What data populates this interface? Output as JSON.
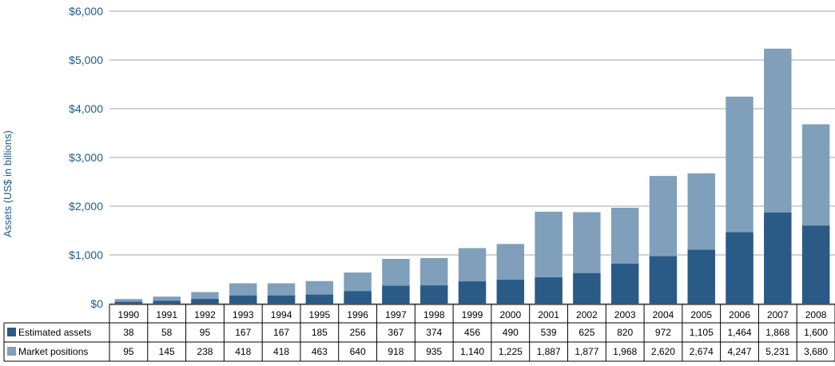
{
  "chart_data": {
    "type": "bar",
    "stacked": false,
    "overlap": true,
    "ylabel": "Assets (US$ in billions)",
    "ylim": [
      0,
      6000
    ],
    "yticks": [
      0,
      1000,
      2000,
      3000,
      4000,
      5000,
      6000
    ],
    "ytick_labels": [
      "$0",
      "$1,000",
      "$2,000",
      "$3,000",
      "$4,000",
      "$5,000",
      "$6,000"
    ],
    "grid": true,
    "legend": "table-bottom",
    "categories": [
      "1990",
      "1991",
      "1992",
      "1993",
      "1994",
      "1995",
      "1996",
      "1997",
      "1998",
      "1999",
      "2000",
      "2001",
      "2002",
      "2003",
      "2004",
      "2005",
      "2006",
      "2007",
      "2008"
    ],
    "series": [
      {
        "name": "Estimated assets",
        "color": "#2a5b86",
        "values": [
          38,
          58,
          95,
          167,
          167,
          185,
          256,
          367,
          374,
          456,
          490,
          539,
          625,
          820,
          972,
          1105,
          1464,
          1868,
          1600
        ],
        "labels": [
          "38",
          "58",
          "95",
          "167",
          "167",
          "185",
          "256",
          "367",
          "374",
          "456",
          "490",
          "539",
          "625",
          "820",
          "972",
          "1,105",
          "1,464",
          "1,868",
          "1,600"
        ]
      },
      {
        "name": "Market positions",
        "color": "#7f9fbb",
        "values": [
          95,
          145,
          238,
          418,
          418,
          463,
          640,
          918,
          935,
          1140,
          1225,
          1887,
          1877,
          1968,
          2620,
          2674,
          4247,
          5231,
          3680
        ],
        "labels": [
          "95",
          "145",
          "238",
          "418",
          "418",
          "463",
          "640",
          "918",
          "935",
          "1,140",
          "1,225",
          "1,887",
          "1,877",
          "1,968",
          "2,620",
          "2,674",
          "4,247",
          "5,231",
          "3,680"
        ]
      }
    ]
  }
}
